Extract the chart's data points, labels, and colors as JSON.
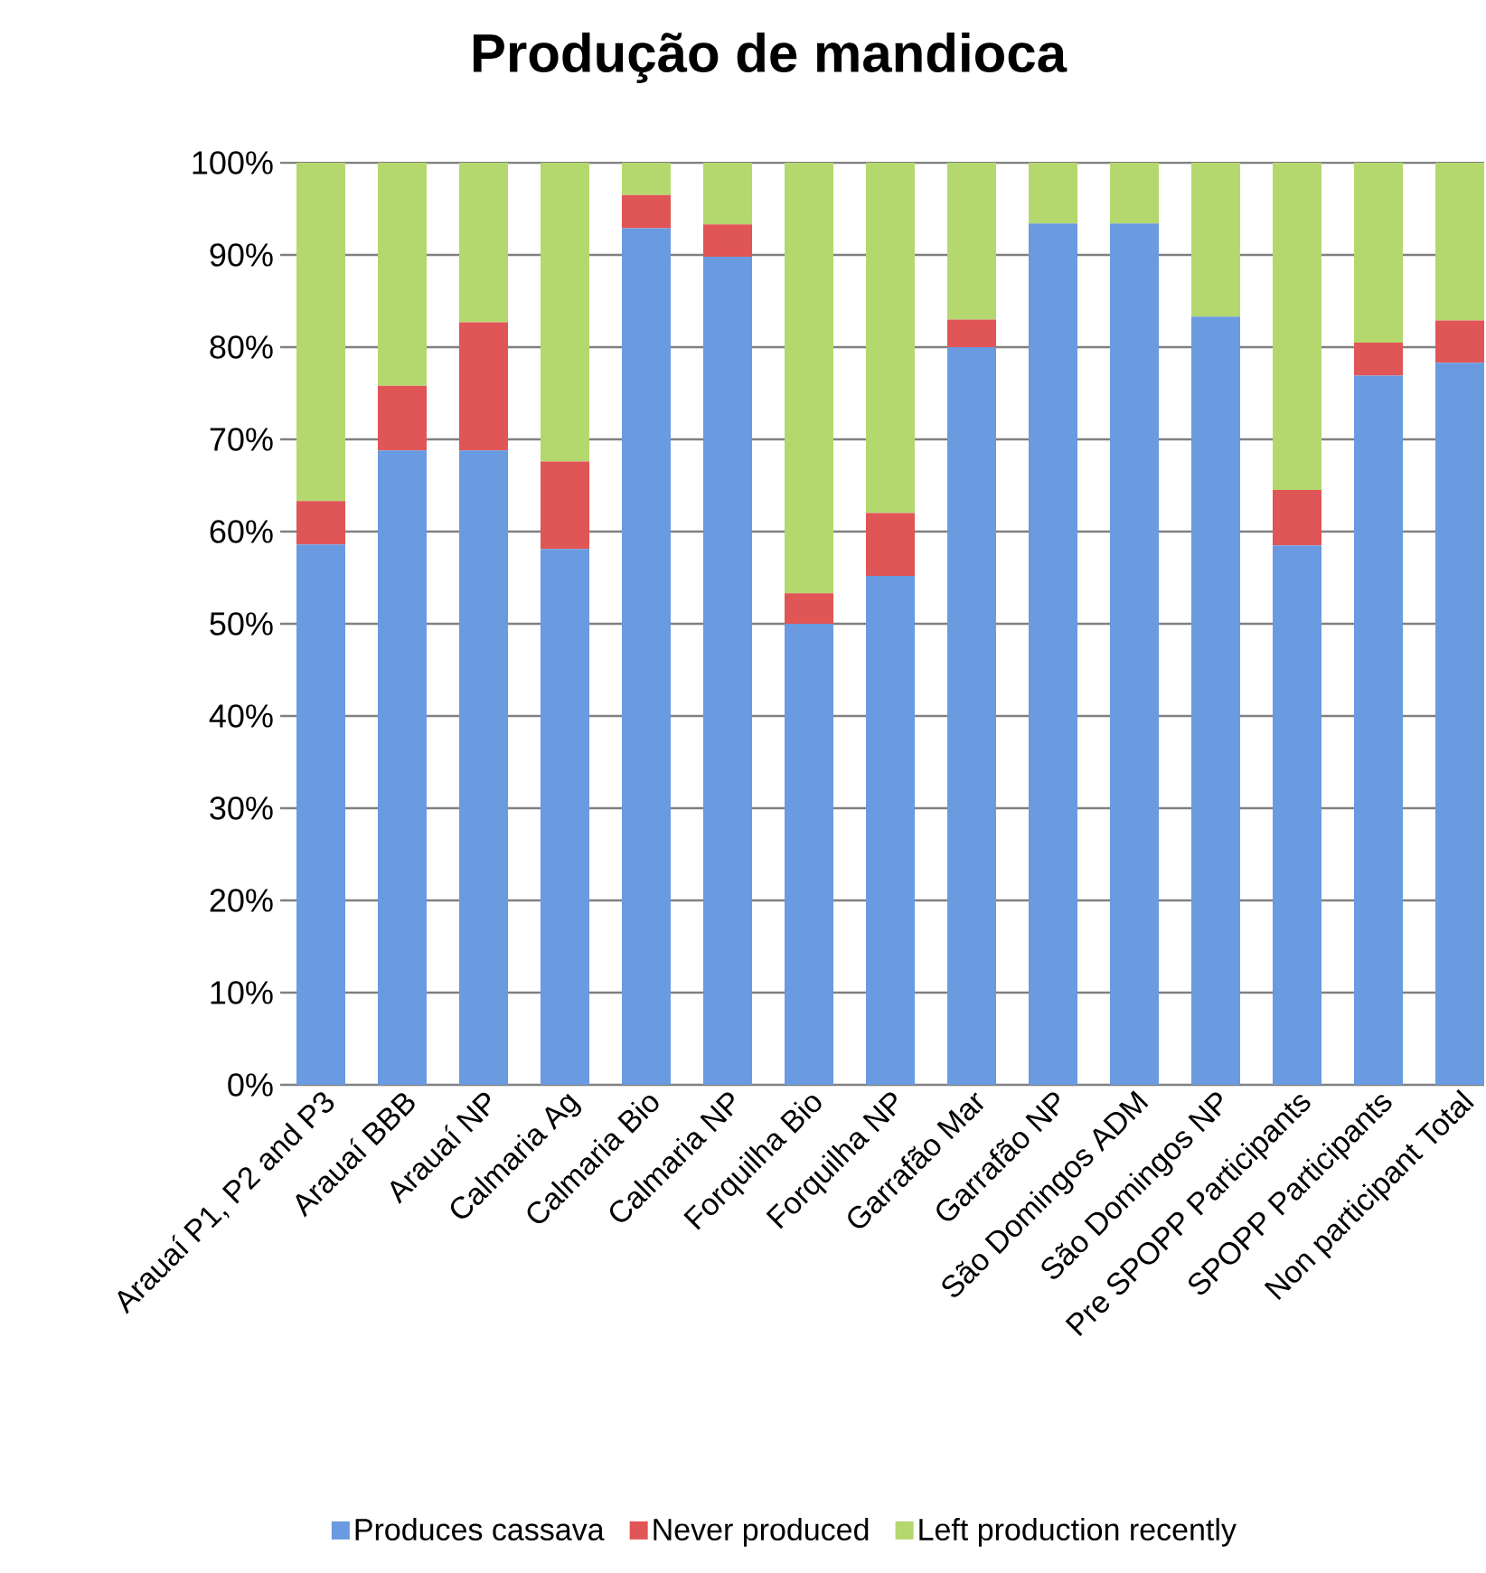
{
  "chart_data": {
    "type": "bar",
    "stacked": true,
    "title": "Produção de mandioca",
    "categories": [
      "Arauaí P1, P2 and P3",
      "Arauaí BBB",
      "Arauaí NP",
      "Calmaria Ag",
      "Calmaria Bio",
      "Calmaria NP",
      "Forquilha Bio",
      "Forquilha NP",
      "Garrafão Mar",
      "Garrafão NP",
      "São Domingos ADM",
      "São Domingos NP",
      "Pre SPOPP Participants",
      "SPOPP Participants",
      "Non participant Total"
    ],
    "series": [
      {
        "name": "Produces cassava",
        "color": "#6a9ae0",
        "values": [
          58.6,
          68.8,
          68.8,
          58.1,
          92.9,
          89.8,
          50,
          55.2,
          80,
          93.4,
          93.4,
          83.3,
          58.5,
          76.9,
          78.3
        ]
      },
      {
        "name": "Never produced",
        "color": "#e05555",
        "values": [
          4.7,
          7,
          13.9,
          9.5,
          3.6,
          3.5,
          3.3,
          6.8,
          3,
          0,
          0,
          0,
          6,
          3.6,
          4.6
        ]
      },
      {
        "name": "Left production recently",
        "color": "#b4d86e",
        "values": [
          36.7,
          24.2,
          17.3,
          32.4,
          3.5,
          6.7,
          46.7,
          38,
          17,
          6.6,
          6.6,
          16.7,
          35.5,
          19.5,
          17.1
        ]
      }
    ],
    "ylim": [
      0,
      100
    ],
    "yticks": [
      {
        "value": 0,
        "label": "0%"
      },
      {
        "value": 10,
        "label": "10%"
      },
      {
        "value": 20,
        "label": "20%"
      },
      {
        "value": 30,
        "label": "30%"
      },
      {
        "value": 40,
        "label": "40%"
      },
      {
        "value": 50,
        "label": "50%"
      },
      {
        "value": 60,
        "label": "60%"
      },
      {
        "value": 70,
        "label": "70%"
      },
      {
        "value": 80,
        "label": "80%"
      },
      {
        "value": 90,
        "label": "90%"
      },
      {
        "value": 100,
        "label": "100%"
      }
    ],
    "grid": "y",
    "legend": "bottom"
  }
}
